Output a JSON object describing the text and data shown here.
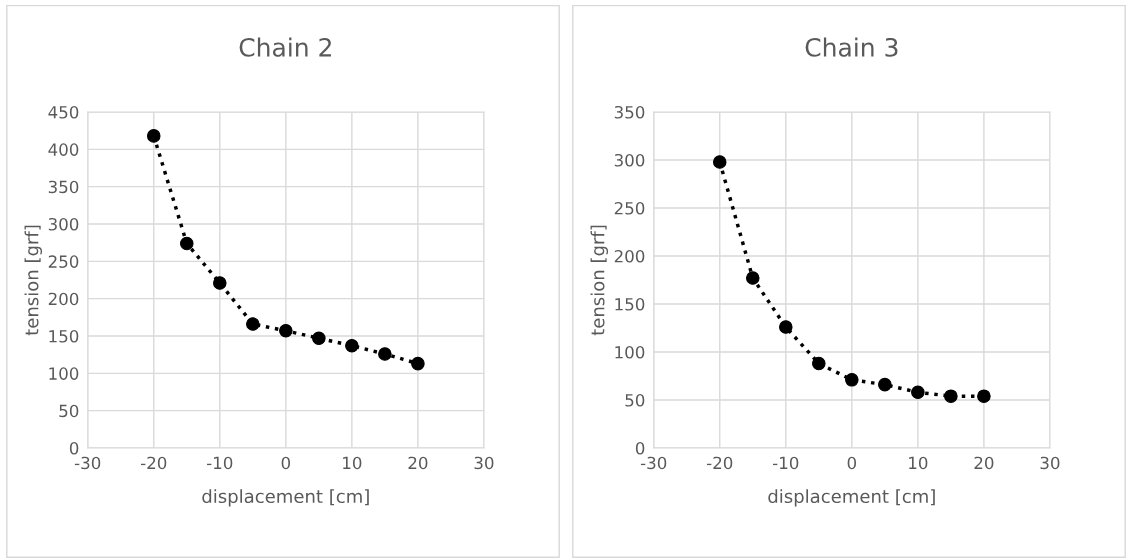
{
  "chart_data": [
    {
      "type": "line",
      "title": "Chain 2",
      "xlabel": "displacement [cm]",
      "ylabel": "tension [grf]",
      "x": [
        -20,
        -15,
        -10,
        -5,
        0,
        5,
        10,
        15,
        20
      ],
      "series": [
        {
          "color": "#000000",
          "values": [
            418,
            274,
            221,
            166,
            157,
            147,
            137,
            126,
            113
          ]
        }
      ],
      "marker": "circle",
      "line_style": "dotted",
      "grid": true,
      "xlim": [
        -30,
        30
      ],
      "xticks": [
        -30,
        -20,
        -10,
        0,
        10,
        20,
        30
      ],
      "ylim": [
        0,
        450
      ],
      "yticks": [
        0,
        50,
        100,
        150,
        200,
        250,
        300,
        350,
        400,
        450
      ],
      "legend": false
    },
    {
      "type": "line",
      "title": "Chain 3",
      "xlabel": "displacement [cm]",
      "ylabel": "tension [grf]",
      "x": [
        -20,
        -15,
        -10,
        -5,
        0,
        5,
        10,
        15,
        20
      ],
      "series": [
        {
          "color": "#000000",
          "values": [
            298,
            177,
            126,
            88,
            71,
            66,
            58,
            54,
            54
          ]
        }
      ],
      "marker": "circle",
      "line_style": "dotted",
      "grid": true,
      "xlim": [
        -30,
        30
      ],
      "xticks": [
        -30,
        -20,
        -10,
        0,
        10,
        20,
        30
      ],
      "ylim": [
        0,
        350
      ],
      "yticks": [
        0,
        50,
        100,
        150,
        200,
        250,
        300,
        350
      ],
      "legend": false
    }
  ]
}
